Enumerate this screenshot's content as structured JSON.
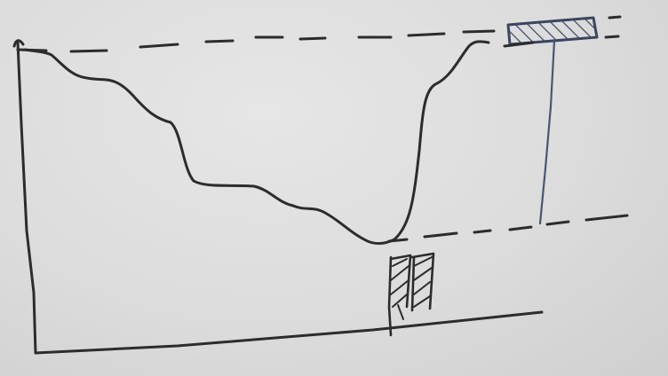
{
  "drawing": {
    "ink_color": "#2c2c2c",
    "blue_ink_color": "#4a5570",
    "board_color": "#dcdcdc",
    "elements": [
      "y-axis-line",
      "x-axis-line",
      "top-dashed-level-line",
      "bottom-dashed-level-line",
      "curve-profile",
      "hatched-box",
      "vertical-connector-line",
      "hatched-marker-below-curve"
    ]
  }
}
